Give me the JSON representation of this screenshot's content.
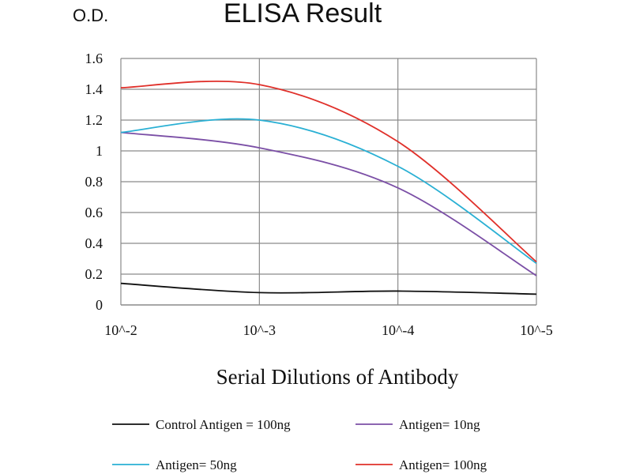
{
  "chart_data": {
    "type": "line",
    "title": "ELISA Result",
    "ylabel": "O.D.",
    "xlabel": "Serial Dilutions of Antibody",
    "categories": [
      "10^-2",
      "10^-3",
      "10^-4",
      "10^-5"
    ],
    "y_ticks": [
      "0",
      "0.2",
      "0.4",
      "0.6",
      "0.8",
      "1",
      "1.2",
      "1.4",
      "1.6"
    ],
    "ylim": [
      0,
      1.6
    ],
    "grid": true,
    "legend_position": "bottom",
    "series": [
      {
        "name": "Control Antigen = 100ng",
        "color": "#111111",
        "values": [
          0.14,
          0.08,
          0.09,
          0.07
        ]
      },
      {
        "name": "Antigen= 10ng",
        "color": "#7b4fa6",
        "values": [
          1.12,
          1.02,
          0.76,
          0.19
        ]
      },
      {
        "name": "Antigen= 50ng",
        "color": "#2ab0d4",
        "values": [
          1.12,
          1.2,
          0.9,
          0.27
        ]
      },
      {
        "name": "Antigen= 100ng",
        "color": "#e0302a",
        "values": [
          1.41,
          1.43,
          1.06,
          0.28
        ]
      }
    ]
  }
}
